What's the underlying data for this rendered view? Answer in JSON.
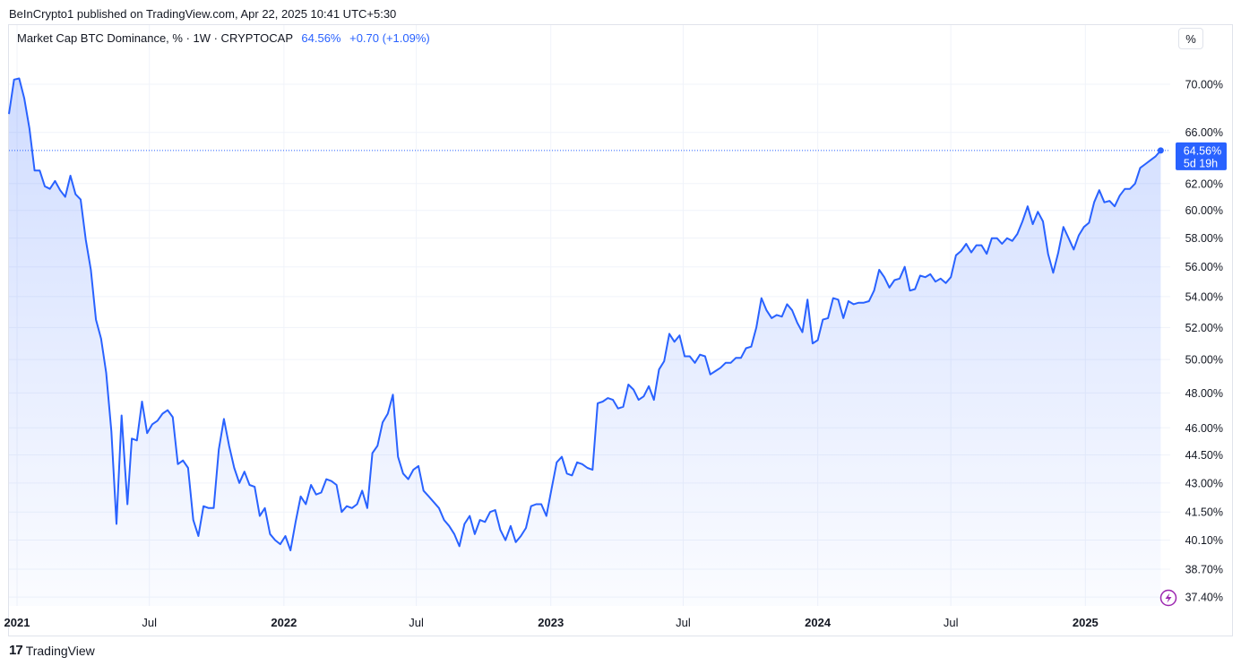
{
  "header": {
    "published": "BeInCrypto1 published on TradingView.com, Apr 22, 2025 10:41 UTC+5:30",
    "symbol": "Market Cap BTC Dominance, % · 1W · CRYPTOCAP",
    "last_value": "64.56%",
    "change": "+0.70 (+1.09%)",
    "unit_button": "%"
  },
  "footer": {
    "brand": "TradingView",
    "logo": "17"
  },
  "colors": {
    "line": "#2962ff",
    "fill_top": "#2962ff",
    "grid": "#f0f3fa",
    "text": "#131722",
    "accent": "#9c27b0"
  },
  "price_tag": {
    "value": "64.56%",
    "countdown": "5d 19h"
  },
  "chart_data": {
    "type": "area",
    "title": "Market Cap BTC Dominance, %",
    "y_scale": "log",
    "ylim": [
      37.0,
      72.5
    ],
    "y_ticks": [
      {
        "value": 70.0,
        "label": "70.00%"
      },
      {
        "value": 66.0,
        "label": "66.00%"
      },
      {
        "value": 62.0,
        "label": "62.00%"
      },
      {
        "value": 60.0,
        "label": "60.00%"
      },
      {
        "value": 58.0,
        "label": "58.00%"
      },
      {
        "value": 56.0,
        "label": "56.00%"
      },
      {
        "value": 54.0,
        "label": "54.00%"
      },
      {
        "value": 52.0,
        "label": "52.00%"
      },
      {
        "value": 50.0,
        "label": "50.00%"
      },
      {
        "value": 48.0,
        "label": "48.00%"
      },
      {
        "value": 46.0,
        "label": "46.00%"
      },
      {
        "value": 44.5,
        "label": "44.50%"
      },
      {
        "value": 43.0,
        "label": "43.00%"
      },
      {
        "value": 41.5,
        "label": "41.50%"
      },
      {
        "value": 40.1,
        "label": "40.10%"
      },
      {
        "value": 38.7,
        "label": "38.70%"
      },
      {
        "value": 37.4,
        "label": "37.40%"
      }
    ],
    "x_range": [
      "2020-12-21",
      "2025-04-27"
    ],
    "x_ticks": [
      {
        "date": "2021-01-01",
        "label": "2021",
        "bold": true
      },
      {
        "date": "2021-07-01",
        "label": "Jul",
        "bold": false
      },
      {
        "date": "2022-01-01",
        "label": "2022",
        "bold": true
      },
      {
        "date": "2022-07-01",
        "label": "Jul",
        "bold": false
      },
      {
        "date": "2023-01-01",
        "label": "2023",
        "bold": true
      },
      {
        "date": "2023-07-01",
        "label": "Jul",
        "bold": false
      },
      {
        "date": "2024-01-01",
        "label": "2024",
        "bold": true
      },
      {
        "date": "2024-07-01",
        "label": "Jul",
        "bold": false
      },
      {
        "date": "2025-01-01",
        "label": "2025",
        "bold": true
      }
    ],
    "series": [
      {
        "color": "#2962ff",
        "points": [
          [
            "2020-12-21",
            67.5
          ],
          [
            "2020-12-28",
            70.4
          ],
          [
            "2021-01-04",
            70.5
          ],
          [
            "2021-01-11",
            68.8
          ],
          [
            "2021-01-18",
            66.3
          ],
          [
            "2021-01-25",
            63.0
          ],
          [
            "2021-02-01",
            63.0
          ],
          [
            "2021-02-08",
            61.8
          ],
          [
            "2021-02-15",
            61.6
          ],
          [
            "2021-02-22",
            62.2
          ],
          [
            "2021-03-01",
            61.5
          ],
          [
            "2021-03-08",
            61.0
          ],
          [
            "2021-03-15",
            62.6
          ],
          [
            "2021-03-22",
            61.2
          ],
          [
            "2021-03-29",
            60.8
          ],
          [
            "2021-04-05",
            57.9
          ],
          [
            "2021-04-12",
            55.8
          ],
          [
            "2021-04-19",
            52.5
          ],
          [
            "2021-04-26",
            51.3
          ],
          [
            "2021-05-03",
            49.2
          ],
          [
            "2021-05-10",
            45.8
          ],
          [
            "2021-05-17",
            40.9
          ],
          [
            "2021-05-24",
            46.7
          ],
          [
            "2021-06-01",
            41.9
          ],
          [
            "2021-06-07",
            45.4
          ],
          [
            "2021-06-14",
            45.3
          ],
          [
            "2021-06-21",
            47.5
          ],
          [
            "2021-06-28",
            45.7
          ],
          [
            "2021-07-05",
            46.2
          ],
          [
            "2021-07-12",
            46.4
          ],
          [
            "2021-07-19",
            46.8
          ],
          [
            "2021-07-26",
            47.0
          ],
          [
            "2021-08-02",
            46.6
          ],
          [
            "2021-08-09",
            44.0
          ],
          [
            "2021-08-16",
            44.2
          ],
          [
            "2021-08-23",
            43.8
          ],
          [
            "2021-08-30",
            41.1
          ],
          [
            "2021-09-06",
            40.3
          ],
          [
            "2021-09-13",
            41.8
          ],
          [
            "2021-09-20",
            41.7
          ],
          [
            "2021-09-27",
            41.7
          ],
          [
            "2021-10-04",
            44.8
          ],
          [
            "2021-10-11",
            46.5
          ],
          [
            "2021-10-18",
            45.0
          ],
          [
            "2021-10-25",
            43.8
          ],
          [
            "2021-11-01",
            43.0
          ],
          [
            "2021-11-08",
            43.6
          ],
          [
            "2021-11-15",
            42.9
          ],
          [
            "2021-11-22",
            42.8
          ],
          [
            "2021-11-29",
            41.3
          ],
          [
            "2021-12-06",
            41.7
          ],
          [
            "2021-12-13",
            40.4
          ],
          [
            "2021-12-20",
            40.1
          ],
          [
            "2021-12-27",
            39.9
          ],
          [
            "2022-01-03",
            40.3
          ],
          [
            "2022-01-10",
            39.6
          ],
          [
            "2022-01-17",
            41.0
          ],
          [
            "2022-01-24",
            42.3
          ],
          [
            "2022-01-31",
            41.9
          ],
          [
            "2022-02-07",
            42.9
          ],
          [
            "2022-02-14",
            42.4
          ],
          [
            "2022-02-21",
            42.5
          ],
          [
            "2022-02-28",
            43.2
          ],
          [
            "2022-03-07",
            43.1
          ],
          [
            "2022-03-14",
            42.9
          ],
          [
            "2022-03-21",
            41.5
          ],
          [
            "2022-03-28",
            41.8
          ],
          [
            "2022-04-04",
            41.7
          ],
          [
            "2022-04-11",
            41.9
          ],
          [
            "2022-04-18",
            42.6
          ],
          [
            "2022-04-25",
            41.7
          ],
          [
            "2022-05-02",
            44.6
          ],
          [
            "2022-05-09",
            45.0
          ],
          [
            "2022-05-16",
            46.3
          ],
          [
            "2022-05-23",
            46.8
          ],
          [
            "2022-05-30",
            47.9
          ],
          [
            "2022-06-06",
            44.4
          ],
          [
            "2022-06-13",
            43.5
          ],
          [
            "2022-06-20",
            43.2
          ],
          [
            "2022-06-27",
            43.7
          ],
          [
            "2022-07-04",
            43.9
          ],
          [
            "2022-07-11",
            42.6
          ],
          [
            "2022-07-18",
            42.3
          ],
          [
            "2022-07-25",
            42.0
          ],
          [
            "2022-08-01",
            41.7
          ],
          [
            "2022-08-08",
            41.1
          ],
          [
            "2022-08-15",
            40.8
          ],
          [
            "2022-08-22",
            40.4
          ],
          [
            "2022-08-29",
            39.8
          ],
          [
            "2022-09-05",
            40.9
          ],
          [
            "2022-09-12",
            41.3
          ],
          [
            "2022-09-19",
            40.4
          ],
          [
            "2022-09-26",
            41.1
          ],
          [
            "2022-10-03",
            41.0
          ],
          [
            "2022-10-10",
            41.5
          ],
          [
            "2022-10-17",
            41.6
          ],
          [
            "2022-10-24",
            40.6
          ],
          [
            "2022-10-31",
            40.1
          ],
          [
            "2022-11-07",
            40.8
          ],
          [
            "2022-11-14",
            40.0
          ],
          [
            "2022-11-21",
            40.3
          ],
          [
            "2022-11-28",
            40.7
          ],
          [
            "2022-12-05",
            41.8
          ],
          [
            "2022-12-12",
            41.9
          ],
          [
            "2022-12-19",
            41.9
          ],
          [
            "2022-12-26",
            41.3
          ],
          [
            "2023-01-02",
            42.7
          ],
          [
            "2023-01-09",
            44.1
          ],
          [
            "2023-01-16",
            44.4
          ],
          [
            "2023-01-23",
            43.5
          ],
          [
            "2023-01-30",
            43.4
          ],
          [
            "2023-02-06",
            44.1
          ],
          [
            "2023-02-13",
            44.0
          ],
          [
            "2023-02-20",
            43.8
          ],
          [
            "2023-02-27",
            43.7
          ],
          [
            "2023-03-06",
            47.4
          ],
          [
            "2023-03-13",
            47.5
          ],
          [
            "2023-03-20",
            47.7
          ],
          [
            "2023-03-27",
            47.6
          ],
          [
            "2023-04-03",
            47.1
          ],
          [
            "2023-04-10",
            47.2
          ],
          [
            "2023-04-17",
            48.5
          ],
          [
            "2023-04-24",
            48.2
          ],
          [
            "2023-05-01",
            47.6
          ],
          [
            "2023-05-08",
            47.8
          ],
          [
            "2023-05-15",
            48.4
          ],
          [
            "2023-05-22",
            47.6
          ],
          [
            "2023-05-29",
            49.4
          ],
          [
            "2023-06-05",
            49.9
          ],
          [
            "2023-06-12",
            51.6
          ],
          [
            "2023-06-19",
            51.1
          ],
          [
            "2023-06-26",
            51.5
          ],
          [
            "2023-07-03",
            50.2
          ],
          [
            "2023-07-10",
            50.2
          ],
          [
            "2023-07-17",
            49.8
          ],
          [
            "2023-07-24",
            50.3
          ],
          [
            "2023-07-31",
            50.2
          ],
          [
            "2023-08-07",
            49.1
          ],
          [
            "2023-08-14",
            49.3
          ],
          [
            "2023-08-21",
            49.5
          ],
          [
            "2023-08-28",
            49.8
          ],
          [
            "2023-09-04",
            49.8
          ],
          [
            "2023-09-11",
            50.1
          ],
          [
            "2023-09-18",
            50.1
          ],
          [
            "2023-09-25",
            50.7
          ],
          [
            "2023-10-02",
            50.8
          ],
          [
            "2023-10-09",
            52.0
          ],
          [
            "2023-10-16",
            53.9
          ],
          [
            "2023-10-23",
            53.1
          ],
          [
            "2023-10-30",
            52.6
          ],
          [
            "2023-11-06",
            52.8
          ],
          [
            "2023-11-13",
            52.7
          ],
          [
            "2023-11-20",
            53.5
          ],
          [
            "2023-11-27",
            53.1
          ],
          [
            "2023-12-04",
            52.3
          ],
          [
            "2023-12-11",
            51.7
          ],
          [
            "2023-12-18",
            53.8
          ],
          [
            "2023-12-25",
            51.0
          ],
          [
            "2024-01-01",
            51.2
          ],
          [
            "2024-01-08",
            52.5
          ],
          [
            "2024-01-15",
            52.6
          ],
          [
            "2024-01-22",
            53.9
          ],
          [
            "2024-01-29",
            53.8
          ],
          [
            "2024-02-05",
            52.6
          ],
          [
            "2024-02-12",
            53.7
          ],
          [
            "2024-02-19",
            53.5
          ],
          [
            "2024-02-26",
            53.6
          ],
          [
            "2024-03-04",
            53.6
          ],
          [
            "2024-03-11",
            53.7
          ],
          [
            "2024-03-18",
            54.4
          ],
          [
            "2024-03-25",
            55.8
          ],
          [
            "2024-04-01",
            55.3
          ],
          [
            "2024-04-08",
            54.6
          ],
          [
            "2024-04-15",
            55.1
          ],
          [
            "2024-04-22",
            55.2
          ],
          [
            "2024-04-29",
            56.0
          ],
          [
            "2024-05-06",
            54.4
          ],
          [
            "2024-05-13",
            54.5
          ],
          [
            "2024-05-20",
            55.4
          ],
          [
            "2024-05-27",
            55.3
          ],
          [
            "2024-06-03",
            55.5
          ],
          [
            "2024-06-10",
            55.0
          ],
          [
            "2024-06-17",
            55.2
          ],
          [
            "2024-06-24",
            54.9
          ],
          [
            "2024-07-01",
            55.3
          ],
          [
            "2024-07-08",
            56.8
          ],
          [
            "2024-07-15",
            57.1
          ],
          [
            "2024-07-22",
            57.6
          ],
          [
            "2024-07-29",
            57.0
          ],
          [
            "2024-08-05",
            57.5
          ],
          [
            "2024-08-12",
            57.5
          ],
          [
            "2024-08-19",
            56.9
          ],
          [
            "2024-08-26",
            58.0
          ],
          [
            "2024-09-02",
            58.0
          ],
          [
            "2024-09-09",
            57.6
          ],
          [
            "2024-09-16",
            58.0
          ],
          [
            "2024-09-23",
            57.8
          ],
          [
            "2024-09-30",
            58.3
          ],
          [
            "2024-10-07",
            59.2
          ],
          [
            "2024-10-14",
            60.3
          ],
          [
            "2024-10-21",
            59.0
          ],
          [
            "2024-10-28",
            59.9
          ],
          [
            "2024-11-04",
            59.2
          ],
          [
            "2024-11-11",
            56.9
          ],
          [
            "2024-11-18",
            55.6
          ],
          [
            "2024-11-25",
            57.0
          ],
          [
            "2024-12-02",
            58.8
          ],
          [
            "2024-12-09",
            58.0
          ],
          [
            "2024-12-16",
            57.2
          ],
          [
            "2024-12-23",
            58.2
          ],
          [
            "2024-12-30",
            58.8
          ],
          [
            "2025-01-06",
            59.1
          ],
          [
            "2025-01-13",
            60.6
          ],
          [
            "2025-01-20",
            61.5
          ],
          [
            "2025-01-27",
            60.6
          ],
          [
            "2025-02-03",
            60.7
          ],
          [
            "2025-02-10",
            60.3
          ],
          [
            "2025-02-17",
            61.1
          ],
          [
            "2025-02-24",
            61.6
          ],
          [
            "2025-03-03",
            61.6
          ],
          [
            "2025-03-10",
            62.0
          ],
          [
            "2025-03-17",
            63.2
          ],
          [
            "2025-03-24",
            63.5
          ],
          [
            "2025-03-31",
            63.8
          ],
          [
            "2025-04-07",
            64.1
          ],
          [
            "2025-04-14",
            64.56
          ]
        ]
      }
    ]
  }
}
